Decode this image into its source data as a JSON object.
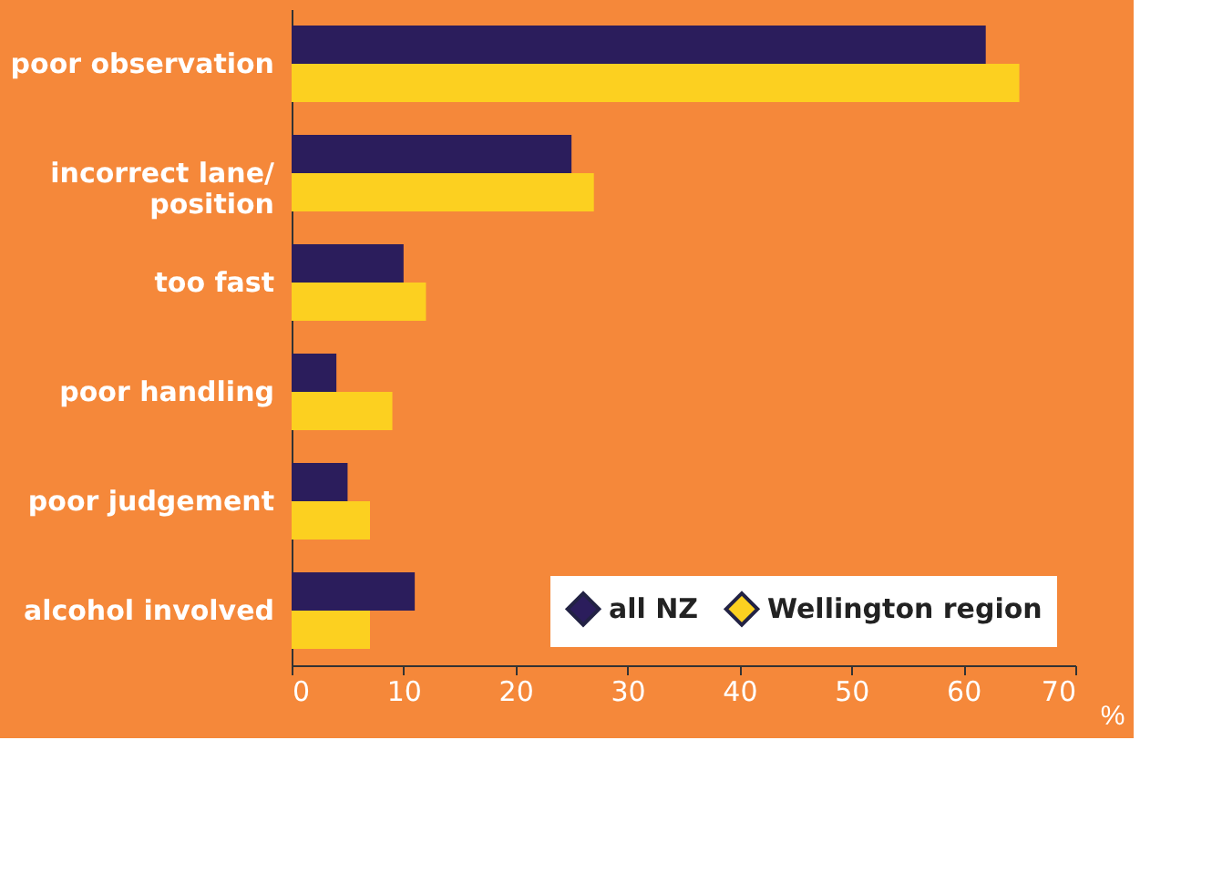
{
  "chart_data": {
    "type": "bar",
    "orientation": "horizontal",
    "xlabel": "%",
    "categories": [
      "poor observation",
      "incorrect lane/\nposition",
      "too fast",
      "poor handling",
      "poor judgement",
      "alcohol involved"
    ],
    "series": [
      {
        "name": "all NZ",
        "color": "#2b1d5c",
        "values": [
          62,
          25,
          10,
          4,
          5,
          11
        ]
      },
      {
        "name": "Wellington region",
        "color": "#fcd020",
        "values": [
          65,
          27,
          12,
          9,
          7,
          7
        ]
      }
    ],
    "xlim": [
      0,
      70
    ],
    "xticks": [
      0,
      10,
      20,
      30,
      40,
      50,
      60,
      70
    ],
    "grid": false,
    "legend": "bottom right"
  }
}
